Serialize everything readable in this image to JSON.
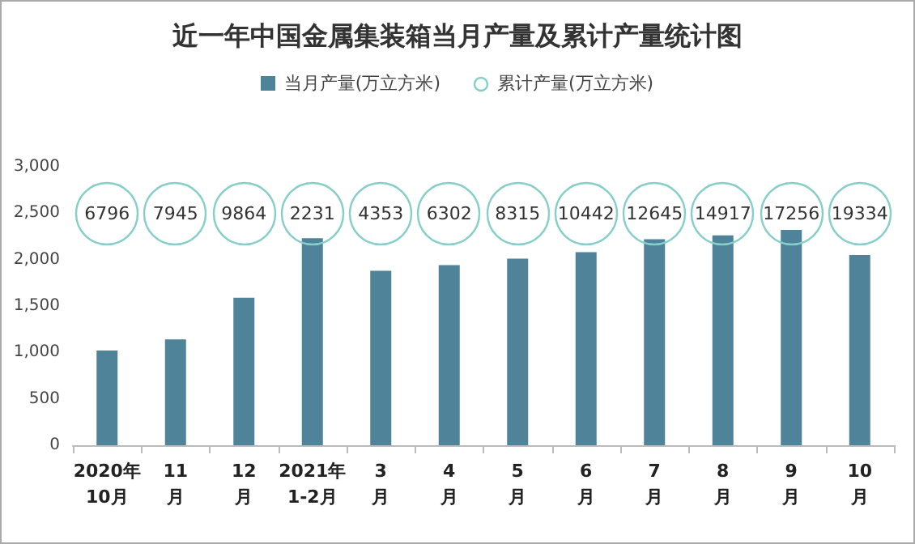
{
  "chart_data": {
    "type": "bar",
    "title": "近一年中国金属集装箱当月产量及累计产量统计图",
    "categories": [
      "2020年\n10月",
      "11\n月",
      "12\n月",
      "2021年\n1-2月",
      "3\n月",
      "4\n月",
      "5\n月",
      "6\n月",
      "7\n月",
      "8\n月",
      "9\n月",
      "10\n月"
    ],
    "series": [
      {
        "name": "当月产量(万立方米)",
        "color": "#4f8399",
        "values": [
          1020,
          1140,
          1590,
          2230,
          1880,
          1940,
          2010,
          2080,
          2220,
          2260,
          2320,
          2050
        ]
      }
    ],
    "ylim": [
      0,
      3000
    ],
    "yticks": [
      0,
      500,
      {
        "value": 1000,
        "label": "1,000"
      },
      {
        "value": 1500,
        "label": "1,500"
      },
      {
        "value": 2000,
        "label": "2,000"
      },
      {
        "value": 2500,
        "label": "2,500"
      },
      {
        "value": 3000,
        "label": "3,000"
      }
    ],
    "annotations": [
      "累计产量(万立方米)",
      {
        "text": "6796",
        "x": "2020年\n10月"
      },
      {
        "text": "7945",
        "x": "11\n月"
      },
      {
        "text": "9864",
        "x": "12\n月"
      },
      {
        "text": "2231",
        "x": "2021年\n1-2月"
      },
      {
        "text": "4353",
        "x": "3\n月"
      },
      {
        "text": "6302",
        "x": "4\n月"
      },
      {
        "text": "8315",
        "x": "5\n月"
      },
      {
        "text": "10442",
        "x": "6\n月"
      },
      {
        "text": "12645",
        "x": "7\n月"
      },
      {
        "text": "14917",
        "x": "8\n月"
      },
      {
        "text": "17256",
        "x": "9\n月"
      },
      {
        "text": "19334",
        "x": "10\n月"
      }
    ],
    "grid": false,
    "legend": "top"
  }
}
